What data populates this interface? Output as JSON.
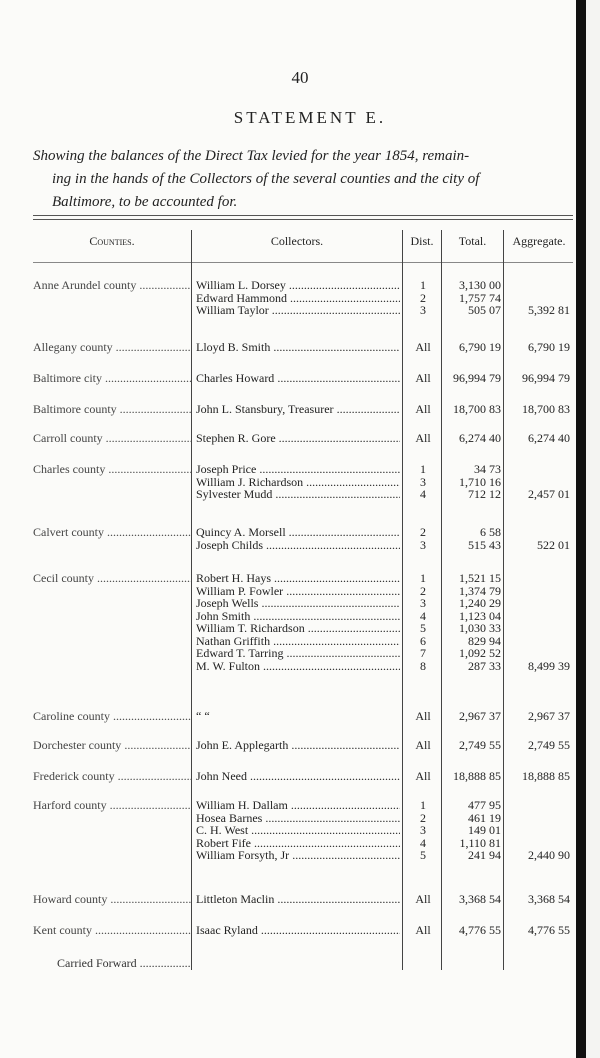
{
  "page_number": "40",
  "title": "STATEMENT E.",
  "subtitle_lines": [
    "Showing the balances of the Direct Tax levied for the year 1854, remain-",
    "ing in the hands of the Collectors of the several counties and the city of",
    "Baltimore, to be accounted for."
  ],
  "table": {
    "headers": {
      "counties": "Counties.",
      "collectors": "Collectors.",
      "dist": "Dist.",
      "total": "Total.",
      "aggregate": "Aggregate."
    },
    "groups": [
      {
        "county": "Anne Arundel county",
        "aggregate": "5,392 81",
        "rows": [
          {
            "collector": "William L. Dorsey",
            "dist": "1",
            "total": "3,130 00"
          },
          {
            "collector": "Edward Hammond",
            "dist": "2",
            "total": "1,757 74"
          },
          {
            "collector": "William Taylor",
            "dist": "3",
            "total": "505 07"
          }
        ]
      },
      {
        "county": "Allegany county",
        "aggregate": "6,790 19",
        "rows": [
          {
            "collector": "Lloyd B. Smith",
            "dist": "All",
            "total": "6,790 19"
          }
        ]
      },
      {
        "county": "Baltimore city",
        "aggregate": "96,994 79",
        "rows": [
          {
            "collector": "Charles Howard",
            "dist": "All",
            "total": "96,994 79"
          }
        ]
      },
      {
        "county": "Baltimore county",
        "aggregate": "18,700 83",
        "rows": [
          {
            "collector": "John L. Stansbury, Treasurer",
            "dist": "All",
            "total": "18,700 83"
          }
        ]
      },
      {
        "county": "Carroll county",
        "aggregate": "6,274 40",
        "rows": [
          {
            "collector": "Stephen R. Gore",
            "dist": "All",
            "total": "6,274 40"
          }
        ]
      },
      {
        "county": "Charles county",
        "aggregate": "2,457 01",
        "rows": [
          {
            "collector": "Joseph Price",
            "dist": "1",
            "total": "34 73"
          },
          {
            "collector": "William J. Richardson",
            "dist": "3",
            "total": "1,710 16"
          },
          {
            "collector": "Sylvester Mudd",
            "dist": "4",
            "total": "712 12"
          }
        ]
      },
      {
        "county": "Calvert county",
        "aggregate": "522 01",
        "rows": [
          {
            "collector": "Quincy A. Morsell",
            "dist": "2",
            "total": "6 58"
          },
          {
            "collector": "Joseph Childs",
            "dist": "3",
            "total": "515 43"
          }
        ]
      },
      {
        "county": "Cecil county",
        "aggregate": "8,499 39",
        "rows": [
          {
            "collector": "Robert H. Hays",
            "dist": "1",
            "total": "1,521 15"
          },
          {
            "collector": "William P. Fowler",
            "dist": "2",
            "total": "1,374 79"
          },
          {
            "collector": "Joseph Wells",
            "dist": "3",
            "total": "1,240 29"
          },
          {
            "collector": "John Smith",
            "dist": "4",
            "total": "1,123 04"
          },
          {
            "collector": "William T. Richardson",
            "dist": "5",
            "total": "1,030 33"
          },
          {
            "collector": "Nathan Griffith",
            "dist": "6",
            "total": "829 94"
          },
          {
            "collector": "Edward T. Tarring",
            "dist": "7",
            "total": "1,092 52"
          },
          {
            "collector": "M. W. Fulton",
            "dist": "8",
            "total": "287 33"
          }
        ]
      },
      {
        "county": "Caroline county",
        "aggregate": "2,967 37",
        "rows": [
          {
            "collector": "“          “",
            "dist": "All",
            "total": "2,967 37"
          }
        ]
      },
      {
        "county": "Dorchester county",
        "aggregate": "2,749 55",
        "rows": [
          {
            "collector": "John E. Applegarth",
            "dist": "All",
            "total": "2,749 55"
          }
        ]
      },
      {
        "county": "Frederick county",
        "aggregate": "18,888 85",
        "rows": [
          {
            "collector": "John Need",
            "dist": "All",
            "total": "18,888 85"
          }
        ]
      },
      {
        "county": "Harford county",
        "aggregate": "2,440 90",
        "rows": [
          {
            "collector": "William H. Dallam",
            "dist": "1",
            "total": "477 95"
          },
          {
            "collector": "Hosea Barnes",
            "dist": "2",
            "total": "461 19"
          },
          {
            "collector": "C. H. West",
            "dist": "3",
            "total": "149 01"
          },
          {
            "collector": "Robert Fife",
            "dist": "4",
            "total": "1,110 81"
          },
          {
            "collector": "William Forsyth, Jr",
            "dist": "5",
            "total": "241 94"
          }
        ]
      },
      {
        "county": "Howard county",
        "aggregate": "3,368 54",
        "rows": [
          {
            "collector": "Littleton Maclin",
            "dist": "All",
            "total": "3,368 54"
          }
        ]
      },
      {
        "county": "Kent county",
        "aggregate": "4,776 55",
        "rows": [
          {
            "collector": "Isaac Ryland",
            "dist": "All",
            "total": "4,776 55"
          }
        ]
      }
    ],
    "carried_forward": "Carried Forward"
  }
}
